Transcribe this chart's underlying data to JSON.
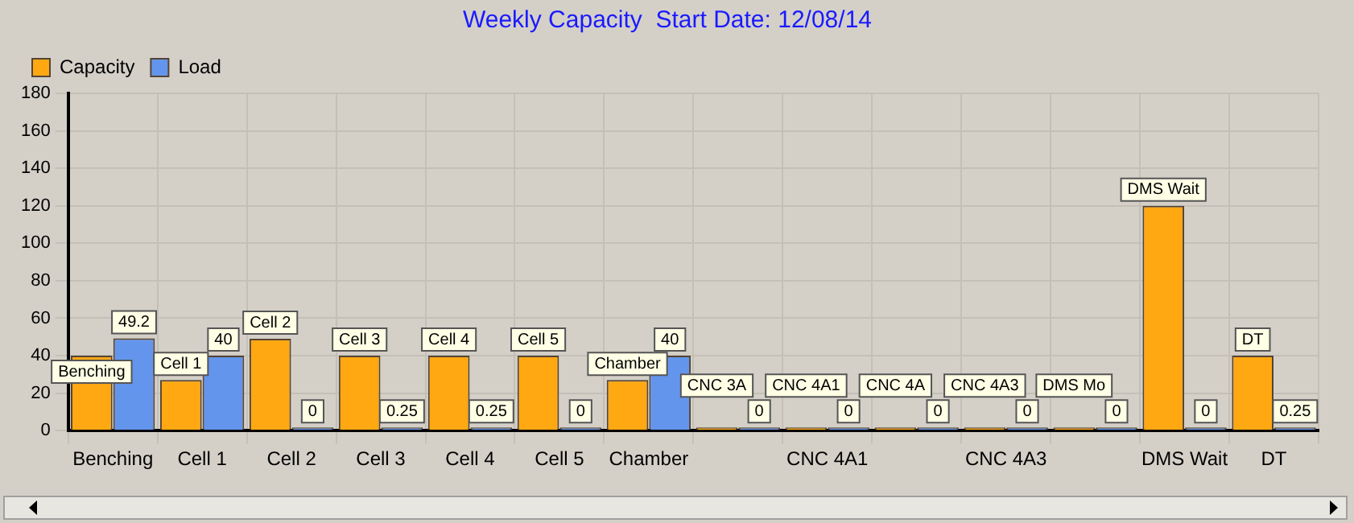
{
  "chart_data": {
    "type": "bar",
    "title": "Weekly Capacity  Start Date: 12/08/14",
    "categories": [
      "Benching",
      "Cell 1",
      "Cell 2",
      "Cell 3",
      "Cell 4",
      "Cell 5",
      "Chamber",
      null,
      "CNC 4A1",
      null,
      "CNC 4A3",
      null,
      "DMS Wait",
      "DT"
    ],
    "series": [
      {
        "name": "Capacity",
        "color": "#ffa812",
        "values": [
          40,
          27,
          49,
          40,
          40,
          40,
          27,
          0,
          0,
          0,
          0,
          0,
          120,
          40
        ],
        "value_labels": [
          "Benching",
          "Cell 1",
          "Cell 2",
          "Cell 3",
          "Cell 4",
          "Cell 5",
          "Chamber",
          "CNC 3A",
          "CNC 4A1",
          "CNC 4A",
          "CNC 4A3",
          "DMS Mo",
          "DMS Wait",
          "DT"
        ]
      },
      {
        "name": "Load",
        "color": "#6495ed",
        "values": [
          49.2,
          40,
          0,
          0.25,
          0.25,
          0,
          40,
          0,
          0,
          0,
          0,
          0,
          0,
          0.25
        ],
        "value_labels": [
          "49.2",
          "40",
          "0",
          "0.25",
          "0.25",
          "0",
          "40",
          "0",
          "0",
          "0",
          "0",
          "0",
          "0",
          "0.25"
        ]
      }
    ],
    "ylim": [
      0,
      180
    ],
    "yticks": [
      0,
      20,
      40,
      60,
      80,
      100,
      120,
      140,
      160,
      180
    ],
    "grid": true,
    "legend": "top left"
  }
}
